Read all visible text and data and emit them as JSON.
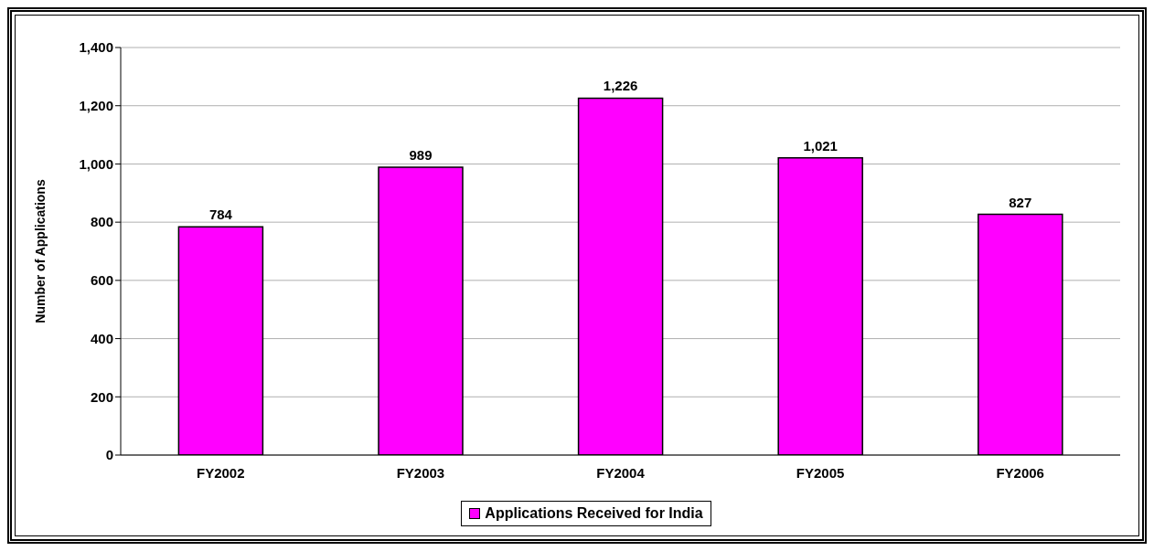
{
  "chart_data": {
    "type": "bar",
    "ylabel": "Number of Applications",
    "categories": [
      "FY2002",
      "FY2003",
      "FY2004",
      "FY2005",
      "FY2006"
    ],
    "series": [
      {
        "name": "Applications Received for India",
        "color": "#ff00ff",
        "values": [
          784,
          989,
          1226,
          1021,
          827
        ],
        "value_labels": [
          "784",
          "989",
          "1,226",
          "1,021",
          "827"
        ]
      }
    ],
    "ylim": [
      0,
      1400
    ],
    "yticks": [
      0,
      200,
      400,
      600,
      800,
      {
        "value": 1000,
        "label": "1,000"
      },
      {
        "value": 1200,
        "label": "1,200"
      },
      {
        "value": 1400,
        "label": "1,400"
      }
    ],
    "grid": "y",
    "legend": "bottom"
  }
}
